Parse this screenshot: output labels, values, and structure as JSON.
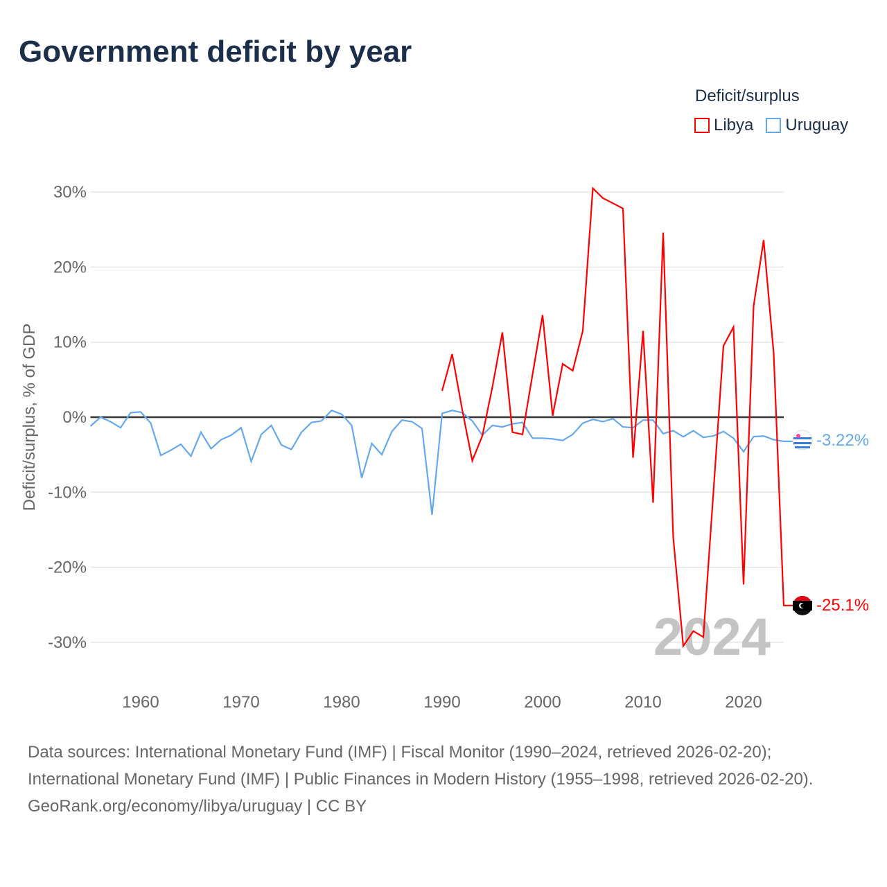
{
  "title": "Government deficit by year",
  "legend": {
    "title": "Deficit/surplus",
    "items": [
      "Libya",
      "Uruguay"
    ]
  },
  "colors": {
    "Libya": "#ff0000",
    "Uruguay": "#64a9ee"
  },
  "year_watermark": "2024",
  "end_labels": {
    "Uruguay": "-3.22%",
    "Libya": "-25.1%"
  },
  "sources": {
    "line1": "Data sources: International Monetary Fund (IMF) | Fiscal Monitor (1990–2024, retrieved 2026-02-20); International Monetary Fund (IMF) | Public Finances in Modern History (1955–1998, retrieved 2026-02-20).",
    "line2": "GeoRank.org/economy/libya/uruguay | CC BY"
  },
  "chart_data": {
    "type": "line",
    "title": "Government deficit by year",
    "xlabel": "",
    "ylabel": "Deficit/surplus, % of GDP",
    "xlim": [
      1955,
      2024
    ],
    "ylim": [
      -33,
      33
    ],
    "xticks": [
      1960,
      1970,
      1980,
      1990,
      2000,
      2010,
      2020
    ],
    "yticks": [
      {
        "v": 30,
        "l": "30%"
      },
      {
        "v": 20,
        "l": "20%"
      },
      {
        "v": 10,
        "l": "10%"
      },
      {
        "v": 0,
        "l": "0%"
      },
      {
        "v": -10,
        "l": "-10%"
      },
      {
        "v": -20,
        "l": "-20%"
      },
      {
        "v": -30,
        "l": "-30%"
      }
    ],
    "legend_position": "top-right",
    "series": [
      {
        "name": "Uruguay",
        "start": 1955,
        "values": [
          -1.2,
          0,
          -0.6,
          -1.4,
          0.6,
          0.7,
          -0.8,
          -5.1,
          -4.4,
          -3.6,
          -5.2,
          -2.0,
          -4.2,
          -3.0,
          -2.4,
          -1.4,
          -5.9,
          -2.3,
          -1.1,
          -3.7,
          -4.3,
          -2.0,
          -0.7,
          -0.5,
          0.9,
          0.4,
          -1.1,
          -8.1,
          -3.5,
          -5.0,
          -1.9,
          -0.4,
          -0.6,
          -1.5,
          -13.0,
          0.5,
          0.9,
          0.6,
          -0.5,
          -2.4,
          -1.1,
          -1.3,
          -0.9,
          -0.7,
          -2.8,
          -2.8,
          -2.9,
          -3.1,
          -2.3,
          -0.8,
          -0.3,
          -0.6,
          -0.2,
          -1.3,
          -1.4,
          -0.4,
          -0.4,
          -2.2,
          -1.8,
          -2.6,
          -1.8,
          -2.7,
          -2.5,
          -1.9,
          -2.8,
          -4.6,
          -2.6,
          -2.5,
          -3.0,
          -3.22
        ]
      },
      {
        "name": "Libya",
        "start": 1990,
        "values": [
          3.5,
          8.4,
          1.0,
          -5.8,
          -2.5,
          4.0,
          11.3,
          -2.0,
          -2.3,
          5.7,
          13.6,
          0.2,
          7.1,
          6.2,
          11.5,
          30.5,
          29.2,
          28.5,
          27.8,
          -5.4,
          11.5,
          -11.4,
          24.6,
          -16.0,
          -30.5,
          -28.5,
          -29.3,
          -10.0,
          9.5,
          12.0,
          -22.3,
          14.8,
          23.6,
          8.5,
          -25.1
        ]
      }
    ]
  }
}
